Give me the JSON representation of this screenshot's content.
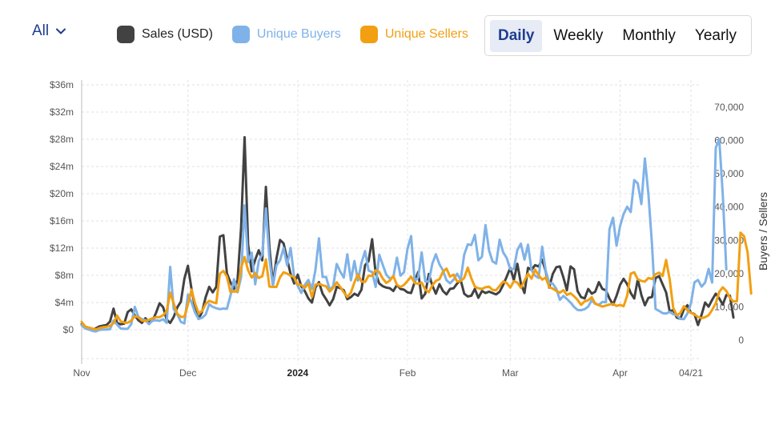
{
  "filter": {
    "label": "All"
  },
  "legend": [
    {
      "label": "Sales (USD)",
      "color": "#424242"
    },
    {
      "label": "Unique Buyers",
      "color": "#7fb2e8"
    },
    {
      "label": "Unique Sellers",
      "color": "#f29f12"
    }
  ],
  "periods": [
    {
      "label": "Daily",
      "active": true
    },
    {
      "label": "Weekly",
      "active": false
    },
    {
      "label": "Monthly",
      "active": false
    },
    {
      "label": "Yearly",
      "active": false
    }
  ],
  "chart_data": {
    "type": "line",
    "start_date": "2023-11-01",
    "x_ticks": [
      {
        "label": "Nov",
        "date": "2023-11-01",
        "bold": false
      },
      {
        "label": "Dec",
        "date": "2023-12-01",
        "bold": false
      },
      {
        "label": "2024",
        "date": "2024-01-01",
        "bold": true
      },
      {
        "label": "Feb",
        "date": "2024-02-01",
        "bold": false
      },
      {
        "label": "Mar",
        "date": "2024-03-01",
        "bold": false
      },
      {
        "label": "Apr",
        "date": "2024-04-01",
        "bold": false
      },
      {
        "label": "04/21",
        "date": "2024-04-21",
        "bold": false
      }
    ],
    "y_left": {
      "label": "",
      "min": 0,
      "max": 36,
      "ticks": [
        0,
        4,
        8,
        12,
        16,
        20,
        24,
        28,
        32,
        36
      ],
      "tick_labels": [
        "$0",
        "$4m",
        "$8m",
        "$12m",
        "$16m",
        "$20m",
        "$24m",
        "$28m",
        "$32m",
        "$36m"
      ]
    },
    "y_right": {
      "label": "Buyers / Sellers",
      "min": 0,
      "max": 70000,
      "ticks": [
        0,
        10000,
        20000,
        30000,
        40000,
        50000,
        60000,
        70000
      ],
      "tick_labels": [
        "0",
        "10,000",
        "20,000",
        "30,000",
        "40,000",
        "50,000",
        "60,000",
        "70,000"
      ]
    },
    "series": [
      {
        "name": "Sales (USD)",
        "axis": "left",
        "color": "#424242",
        "values": [
          0.8,
          0.3,
          0.2,
          -0.1,
          0.2,
          0.5,
          0.6,
          0.7,
          1.2,
          3.1,
          1.0,
          0.8,
          0.9,
          2.6,
          3.0,
          2.1,
          1.4,
          1.0,
          1.7,
          1.1,
          1.3,
          2.5,
          3.9,
          3.3,
          1.5,
          1.0,
          1.9,
          3.3,
          4.1,
          7.5,
          9.4,
          6.0,
          3.3,
          1.6,
          2.6,
          4.8,
          6.3,
          5.5,
          6.3,
          13.7,
          13.9,
          8.3,
          7.0,
          6.0,
          7.3,
          14.9,
          28.3,
          12.5,
          8.6,
          10.3,
          11.7,
          10.2,
          21.0,
          12.1,
          6.7,
          10.5,
          13.2,
          12.7,
          10.4,
          8.2,
          6.8,
          8.1,
          6.4,
          5.7,
          4.6,
          4.0,
          6.2,
          7.0,
          5.3,
          4.5,
          3.6,
          4.5,
          6.3,
          6.1,
          5.8,
          4.5,
          4.8,
          5.3,
          5.0,
          5.9,
          9.5,
          10.1,
          13.3,
          8.3,
          6.8,
          6.4,
          6.2,
          6.1,
          5.7,
          6.6,
          6.0,
          5.9,
          5.5,
          5.4,
          7.0,
          8.5,
          4.6,
          5.3,
          8.2,
          6.5,
          5.3,
          6.7,
          5.7,
          5.2,
          6.0,
          6.1,
          6.8,
          7.3,
          5.3,
          4.9,
          5.0,
          6.0,
          4.7,
          5.7,
          5.4,
          5.6,
          5.4,
          5.2,
          5.6,
          6.6,
          7.8,
          9.1,
          7.3,
          9.7,
          6.8,
          5.4,
          9.1,
          8.8,
          9.5,
          9.3,
          10.3,
          8.6,
          6.2,
          8.2,
          9.2,
          9.3,
          7.7,
          5.8,
          9.3,
          8.9,
          5.7,
          4.8,
          4.6,
          6.0,
          5.3,
          5.6,
          7.0,
          6.0,
          5.8,
          4.6,
          3.7,
          5.0,
          6.6,
          7.5,
          6.7,
          5.4,
          4.6,
          7.4,
          5.1,
          3.6,
          4.7,
          4.8,
          7.6,
          7.9,
          6.7,
          5.5,
          2.7,
          2.9,
          1.8,
          1.6,
          3.0,
          3.6,
          2.5,
          2.3,
          0.7,
          2.2,
          4.0,
          3.4,
          4.4,
          5.3,
          4.6,
          3.7,
          5.1,
          5.0,
          1.8
        ]
      },
      {
        "name": "Unique Buyers",
        "axis": "right",
        "color": "#7fb2e8",
        "values": [
          4500,
          3500,
          3200,
          2800,
          2600,
          3100,
          3200,
          3200,
          3300,
          5900,
          4700,
          3500,
          3400,
          3400,
          4800,
          10000,
          7000,
          6300,
          6000,
          4800,
          5900,
          6000,
          5800,
          6300,
          5200,
          22000,
          9300,
          7700,
          5500,
          5000,
          13700,
          11400,
          8300,
          6400,
          6700,
          7700,
          10800,
          10000,
          9600,
          9300,
          9500,
          9400,
          13300,
          18300,
          14400,
          18900,
          40500,
          23500,
          26300,
          16800,
          23800,
          25800,
          39600,
          24400,
          16300,
          22500,
          24000,
          27700,
          22500,
          27700,
          18800,
          16300,
          14200,
          16600,
          18100,
          15400,
          21100,
          30600,
          19000,
          19000,
          15200,
          16200,
          22900,
          20600,
          18800,
          25800,
          18000,
          23800,
          17900,
          23200,
          26800,
          20900,
          20500,
          16000,
          25700,
          22600,
          19700,
          18500,
          19000,
          24800,
          19400,
          20400,
          27500,
          31300,
          17800,
          18800,
          26400,
          17600,
          17600,
          23000,
          25800,
          22800,
          21000,
          18000,
          17100,
          18200,
          20000,
          18100,
          25700,
          28800,
          28600,
          31600,
          24000,
          25100,
          34600,
          27000,
          23700,
          23000,
          30200,
          26400,
          24700,
          21300,
          21400,
          27100,
          29000,
          24200,
          28700,
          21000,
          19400,
          18700,
          28100,
          20900,
          17100,
          17000,
          15400,
          12100,
          13300,
          12400,
          11300,
          10000,
          9100,
          9000,
          9300,
          10100,
          12000,
          10900,
          10600,
          11500,
          11400,
          33300,
          36800,
          28400,
          34300,
          37900,
          40100,
          38500,
          48100,
          47100,
          40900,
          54600,
          43800,
          29000,
          9400,
          8800,
          8100,
          8000,
          8500,
          7800,
          7500,
          6400,
          6300,
          8000,
          11000,
          17400,
          18100,
          16100,
          17300,
          21400,
          17300,
          57800,
          60400,
          43600,
          21300
        ]
      },
      {
        "name": "Unique Sellers",
        "axis": "right",
        "color": "#f29f12",
        "values": [
          5500,
          4100,
          3800,
          3500,
          3200,
          3600,
          3900,
          4000,
          4300,
          5100,
          7400,
          5700,
          5300,
          5200,
          5900,
          7200,
          6900,
          5900,
          5800,
          6100,
          6600,
          6900,
          6900,
          7500,
          8700,
          14300,
          11000,
          7900,
          7000,
          7000,
          10700,
          15200,
          11100,
          8100,
          8700,
          10900,
          11800,
          11400,
          11100,
          20000,
          20800,
          19100,
          14500,
          14600,
          14600,
          21700,
          25000,
          21000,
          18800,
          20100,
          18700,
          19200,
          24300,
          16100,
          16000,
          16000,
          18900,
          20400,
          20000,
          19400,
          18900,
          16700,
          16600,
          15700,
          17000,
          13000,
          16700,
          16900,
          16500,
          16200,
          14600,
          15700,
          17400,
          16000,
          14400,
          13000,
          14300,
          17400,
          19800,
          17600,
          17500,
          19400,
          19300,
          21000,
          20500,
          18500,
          17200,
          17900,
          19300,
          16600,
          16000,
          16600,
          17800,
          19100,
          17200,
          16900,
          17300,
          15200,
          14400,
          16500,
          17800,
          18300,
          20600,
          21500,
          19100,
          19700,
          17600,
          17800,
          18700,
          21800,
          18600,
          16100,
          15600,
          15400,
          15900,
          16100,
          15100,
          15000,
          16300,
          17600,
          17200,
          15800,
          17700,
          17300,
          15700,
          17900,
          20000,
          18500,
          21200,
          19500,
          18200,
          18800,
          16000,
          15500,
          14800,
          14300,
          15000,
          13600,
          14100,
          13200,
          12100,
          10600,
          11700,
          12000,
          12900,
          11000,
          10500,
          10100,
          10400,
          10700,
          10900,
          10300,
          10600,
          10200,
          13400,
          20000,
          20400,
          18300,
          17800,
          17600,
          18700,
          18400,
          19800,
          20300,
          19300,
          24100,
          18200,
          9700,
          7500,
          8100,
          10200,
          9000,
          8200,
          7700,
          7000,
          6600,
          6900,
          7500,
          9100,
          11100,
          14500,
          15900,
          14800,
          12700,
          11600,
          11700,
          32300,
          31200,
          26400,
          14000
        ]
      }
    ]
  }
}
